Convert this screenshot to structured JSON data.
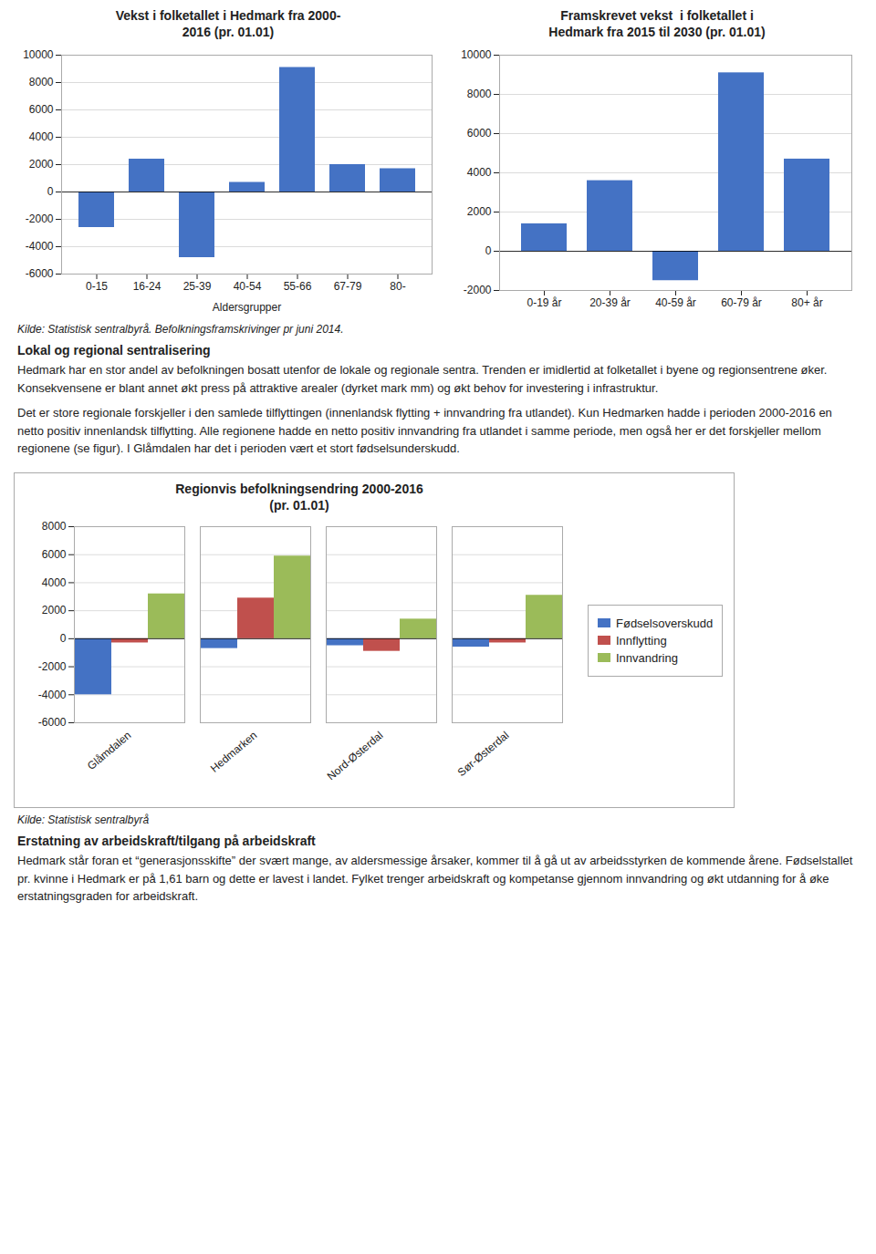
{
  "chart_data": [
    {
      "type": "bar",
      "title": "Vekst i folketallet i Hedmark fra 2000-\n2016 (pr. 01.01)",
      "categories": [
        "0-15",
        "16-24",
        "25-39",
        "40-54",
        "55-66",
        "67-79",
        "80-"
      ],
      "values": [
        -2600,
        2400,
        -4800,
        700,
        9100,
        2000,
        1700
      ],
      "color": "#4472c4",
      "xlabel": "Aldersgrupper",
      "ylim": [
        -6000,
        10000
      ],
      "yticks": [
        -6000,
        -4000,
        -2000,
        0,
        2000,
        4000,
        6000,
        8000,
        10000
      ],
      "grid": true
    },
    {
      "type": "bar",
      "title": "Framskrevet vekst  i folketallet i\nHedmark fra 2015 til 2030 (pr. 01.01)",
      "categories": [
        "0-19 år",
        "20-39 år",
        "40-59 år",
        "60-79 år",
        "80+ år"
      ],
      "values": [
        1400,
        3600,
        -1500,
        9100,
        4700
      ],
      "color": "#4472c4",
      "ylim": [
        -2000,
        10000
      ],
      "yticks": [
        -2000,
        0,
        2000,
        4000,
        6000,
        8000,
        10000
      ],
      "grid": true
    },
    {
      "type": "bar",
      "title": "Regionvis befolkningsendring 2000-2016\n(pr. 01.01)",
      "categories": [
        "Glåmdalen",
        "Hedmarken",
        "Nord-Østerdal",
        "Sør-Østerdal"
      ],
      "series": [
        {
          "name": "Fødselsoverskudd",
          "color": "#4472c4",
          "values": [
            -4000,
            -700,
            -500,
            -600
          ]
        },
        {
          "name": "Innflytting",
          "color": "#c0504d",
          "values": [
            -300,
            2900,
            -900,
            -300
          ]
        },
        {
          "name": "Innvandring",
          "color": "#9bbb59",
          "values": [
            3200,
            5900,
            1400,
            3100
          ]
        }
      ],
      "ylim": [
        -6000,
        8000
      ],
      "yticks": [
        -6000,
        -4000,
        -2000,
        0,
        2000,
        4000,
        6000,
        8000
      ],
      "grid": true,
      "legend": "right"
    }
  ],
  "sources": [
    "Kilde: Statistisk sentralbyrå. Befolkningsframskrivinger pr juni 2014.",
    "Kilde: Statistisk sentralbyrå"
  ],
  "sections": [
    {
      "heading": "Lokal og regional sentralisering",
      "paragraphs": [
        "Hedmark har en stor andel av befolkningen bosatt utenfor de lokale og regionale sentra. Trenden er imidlertid at folketallet i byene og regionsentrene øker. Konsekvensene er blant annet økt press på attraktive arealer (dyrket mark mm) og økt behov for investering i infrastruktur.",
        "Det er store regionale forskjeller i den samlede tilflyttingen (innenlandsk flytting + innvandring fra utlandet). Kun Hedmarken hadde i perioden 2000-2016 en netto positiv innenlandsk tilflytting. Alle regionene hadde en netto positiv innvandring fra utlandet i samme periode, men også her er det forskjeller mellom regionene (se figur). I Glåmdalen har det i perioden vært et stort fødselsunderskudd."
      ]
    },
    {
      "heading": "Erstatning av arbeidskraft/tilgang på arbeidskraft",
      "paragraphs": [
        "Hedmark står foran et “generasjonsskifte” der svært mange, av aldersmessige årsaker, kommer til å gå ut av arbeidsstyrken de kommende årene. Fødselstallet pr. kvinne i Hedmark er på 1,61 barn og dette er lavest i landet. Fylket trenger arbeidskraft og kompetanse gjennom innvandring og økt utdanning for å øke erstatningsgraden for arbeidskraft."
      ]
    }
  ]
}
